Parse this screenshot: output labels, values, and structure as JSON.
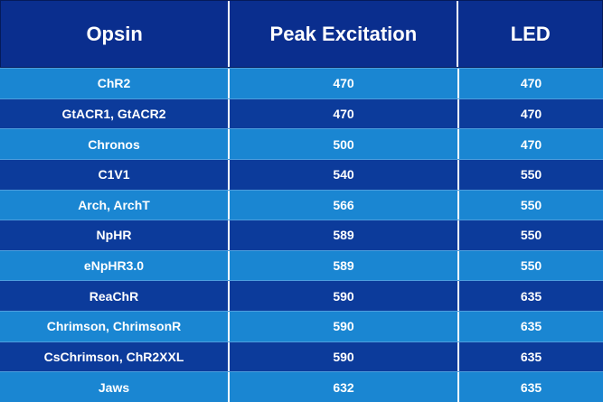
{
  "table": {
    "headers": [
      "Opsin",
      "Peak Excitation",
      "LED"
    ],
    "rows": [
      [
        "ChR2",
        470,
        470
      ],
      [
        "GtACR1, GtACR2",
        470,
        470
      ],
      [
        "Chronos",
        500,
        470
      ],
      [
        "C1V1",
        540,
        550
      ],
      [
        "Arch, ArchT",
        566,
        550
      ],
      [
        "NpHR",
        589,
        550
      ],
      [
        "eNpHR3.0",
        589,
        550
      ],
      [
        "ReaChR",
        590,
        635
      ],
      [
        "Chrimson, ChrimsonR",
        590,
        635
      ],
      [
        "CsChrimson, ChR2XXL",
        590,
        635
      ],
      [
        "Jaws",
        632,
        635
      ]
    ]
  }
}
